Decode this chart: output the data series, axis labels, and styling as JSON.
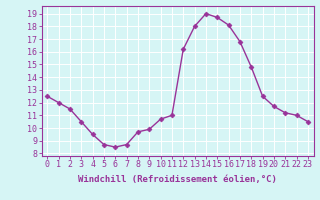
{
  "x": [
    0,
    1,
    2,
    3,
    4,
    5,
    6,
    7,
    8,
    9,
    10,
    11,
    12,
    13,
    14,
    15,
    16,
    17,
    18,
    19,
    20,
    21,
    22,
    23
  ],
  "y": [
    12.5,
    12.0,
    11.5,
    10.5,
    9.5,
    8.7,
    8.5,
    8.7,
    9.7,
    9.9,
    10.7,
    11.0,
    16.2,
    18.0,
    19.0,
    18.7,
    18.1,
    16.8,
    14.8,
    12.5,
    11.7,
    11.2,
    11.0,
    10.5
  ],
  "line_color": "#993399",
  "marker": "D",
  "markersize": 2.5,
  "linewidth": 1.0,
  "xlabel": "Windchill (Refroidissement éolien,°C)",
  "xlabel_fontsize": 6.5,
  "xtick_labels": [
    "0",
    "1",
    "2",
    "3",
    "4",
    "5",
    "6",
    "7",
    "8",
    "9",
    "10",
    "11",
    "12",
    "13",
    "14",
    "15",
    "16",
    "17",
    "18",
    "19",
    "20",
    "21",
    "22",
    "23"
  ],
  "ytick_values": [
    8,
    9,
    10,
    11,
    12,
    13,
    14,
    15,
    16,
    17,
    18,
    19
  ],
  "ylim": [
    7.8,
    19.6
  ],
  "xlim": [
    -0.5,
    23.5
  ],
  "bg_color": "#d6f5f5",
  "grid_color": "#ffffff",
  "tick_color": "#993399",
  "tick_fontsize": 6,
  "spine_color": "#993399"
}
